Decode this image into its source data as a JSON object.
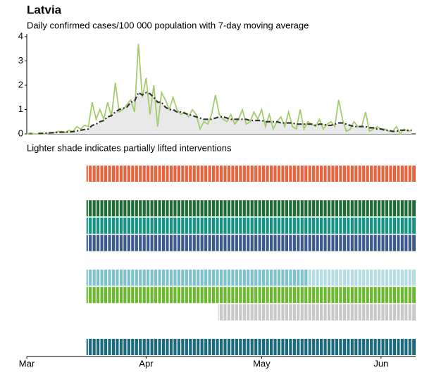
{
  "chart_data": {
    "type": "line",
    "title": "Latvia",
    "subtitle": "Daily confirmed cases/100 000 population with 7-day moving average",
    "annotation": "Lighter shade indicates partially lifted interventions",
    "x": [
      0,
      1,
      2,
      3,
      4,
      5,
      6,
      7,
      8,
      9,
      10,
      11,
      12,
      13,
      14,
      15,
      16,
      17,
      18,
      19,
      20,
      21,
      22,
      23,
      24,
      25,
      26,
      27,
      28,
      29,
      30,
      31,
      32,
      33,
      34,
      35,
      36,
      37,
      38,
      39,
      40,
      41,
      42,
      43,
      44,
      45,
      46,
      47,
      48,
      49,
      50,
      51,
      52,
      53,
      54,
      55,
      56,
      57,
      58,
      59,
      60,
      61,
      62,
      63,
      64,
      65,
      66,
      67,
      68,
      69,
      70,
      71,
      72,
      73,
      74,
      75,
      76,
      77,
      78,
      79,
      80,
      81,
      82,
      83,
      84,
      85,
      86,
      87,
      88,
      89,
      90,
      91,
      92,
      93,
      94,
      95,
      96,
      97,
      98,
      99,
      100
    ],
    "xlim": [
      0,
      101
    ],
    "xticks": [
      {
        "value": 0,
        "label": "Mar"
      },
      {
        "value": 31,
        "label": "Apr"
      },
      {
        "value": 61,
        "label": "May"
      },
      {
        "value": 92,
        "label": "Jun"
      }
    ],
    "ylim": [
      0,
      4
    ],
    "yticks": [
      0,
      1,
      2,
      3,
      4
    ],
    "series": [
      {
        "color": "#a4cc6e",
        "values": [
          0,
          0.05,
          0,
          0,
          0,
          0,
          0.05,
          0.05,
          0.1,
          0.1,
          0.05,
          0.15,
          0.1,
          0.3,
          0.2,
          0.35,
          0.3,
          1.3,
          0.6,
          1.0,
          0.6,
          1.3,
          0.7,
          2.1,
          0.9,
          1.0,
          1.2,
          1.4,
          0.9,
          3.7,
          1.5,
          2.3,
          0.8,
          2.0,
          0.3,
          1.7,
          1.4,
          1.0,
          1.5,
          1.0,
          0.8,
          0.9,
          0.7,
          1.0,
          0.8,
          0.2,
          0.5,
          0.4,
          0.8,
          1.6,
          0.8,
          0.6,
          0.5,
          0.8,
          0.4,
          0.6,
          1.0,
          0.4,
          0.5,
          0.9,
          0.6,
          1.0,
          0.3,
          0.8,
          0.2,
          0.5,
          0.7,
          0.3,
          0.9,
          0.3,
          0.2,
          1.0,
          0.2,
          0.5,
          0.4,
          0.3,
          0.6,
          0.2,
          0.4,
          0.5,
          0.3,
          1.4,
          0.6,
          0.1,
          0.2,
          0.5,
          0.3,
          0.3,
          0.9,
          0.1,
          0.2,
          0.3,
          0.2,
          0.2,
          0.1,
          0.1,
          0.3,
          0.0,
          0.2,
          0.1,
          0.15
        ]
      },
      {
        "color": "#333333",
        "dashed": true,
        "fill": "#e9e9e9",
        "values": [
          null,
          null,
          null,
          0.02,
          0.02,
          0.03,
          0.04,
          0.05,
          0.06,
          0.07,
          0.07,
          0.08,
          0.09,
          0.12,
          0.15,
          0.18,
          0.2,
          0.35,
          0.4,
          0.5,
          0.55,
          0.7,
          0.75,
          0.9,
          1.0,
          1.05,
          1.1,
          1.3,
          1.35,
          1.7,
          1.6,
          1.7,
          1.65,
          1.5,
          1.3,
          1.3,
          1.1,
          1.0,
          1.0,
          0.9,
          0.9,
          0.85,
          0.8,
          0.75,
          0.7,
          0.65,
          0.6,
          0.6,
          0.6,
          0.65,
          0.7,
          0.7,
          0.65,
          0.6,
          0.6,
          0.6,
          0.6,
          0.6,
          0.55,
          0.55,
          0.55,
          0.55,
          0.5,
          0.5,
          0.5,
          0.5,
          0.45,
          0.45,
          0.45,
          0.45,
          0.4,
          0.4,
          0.4,
          0.4,
          0.4,
          0.35,
          0.4,
          0.4,
          0.35,
          0.35,
          0.4,
          0.45,
          0.45,
          0.4,
          0.35,
          0.3,
          0.3,
          0.3,
          0.3,
          0.25,
          0.25,
          0.2,
          0.2,
          0.15,
          0.15,
          0.1,
          0.1,
          0.15,
          0.15,
          0.15,
          0.15
        ]
      }
    ],
    "interventions": [
      {
        "color": "#e8643c",
        "start": 15.5,
        "end": 101
      },
      {
        "color": "#1e6b35",
        "start": 15.5,
        "end": 101
      },
      {
        "color": "#139384",
        "start": 15.5,
        "end": 101
      },
      {
        "color": "#3d5a8e",
        "start": 15.5,
        "end": 101
      },
      {
        "color": "#7fc2cb",
        "start": 15.5,
        "end": 101,
        "light_from": 73,
        "light_color": "#b3dde2"
      },
      {
        "color": "#6bb92e",
        "start": 15.5,
        "end": 101
      },
      {
        "color": "#c8c8c8",
        "start": 49.7,
        "end": 101
      },
      {
        "color": "#1a6b80",
        "start": 15.5,
        "end": 101
      }
    ]
  }
}
